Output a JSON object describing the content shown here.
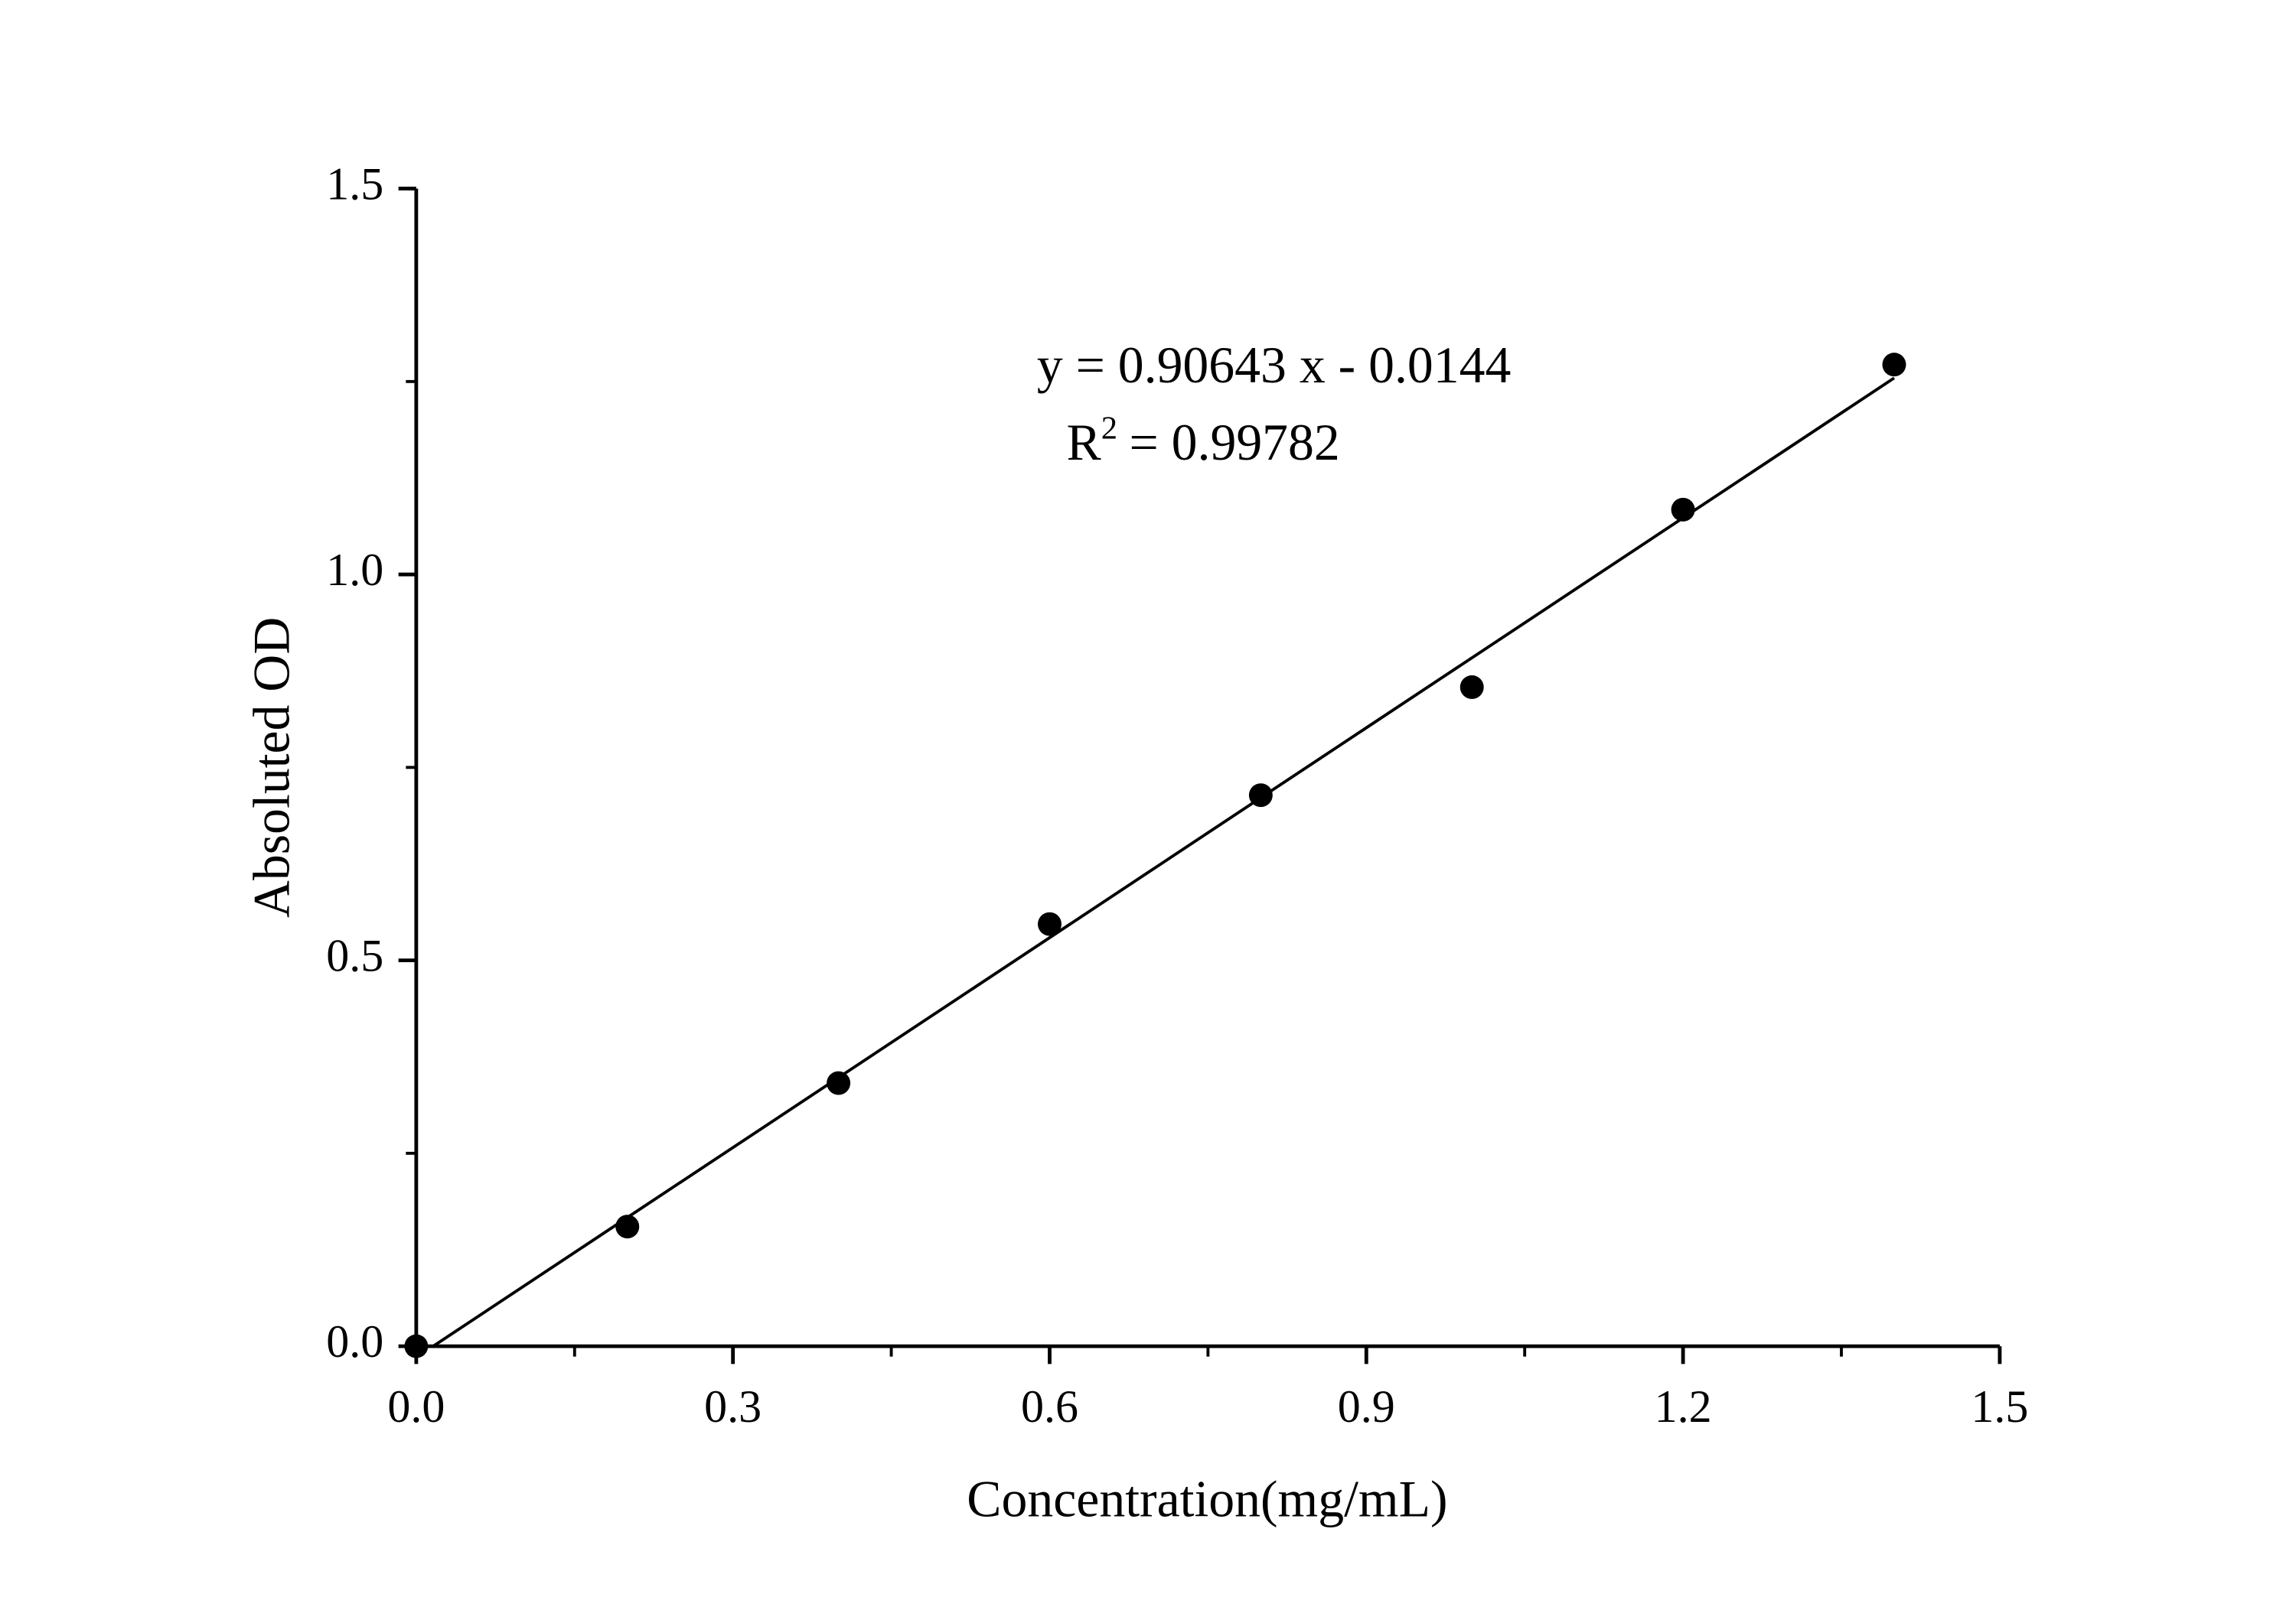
{
  "chart_data": {
    "type": "scatter",
    "x_label": "Concentration(mg/mL)",
    "y_label": "Absoluted OD",
    "x": [
      0,
      0.2,
      0.4,
      0.6,
      0.8,
      1.0,
      1.2,
      1.4
    ],
    "series": [
      {
        "values": [
          0,
          0.155,
          0.341,
          0.547,
          0.714,
          0.854,
          1.084,
          1.272
        ],
        "color": "#000000"
      }
    ],
    "fit_line": {
      "x": [
        0.016,
        1.4
      ],
      "y": [
        0,
        1.2546
      ],
      "color": "#000000"
    },
    "annotations": {
      "equation": "y = 0.90643 x - 0.0144",
      "r2": {
        "base": "R",
        "superscript": "2",
        "value": "= 0.99782"
      }
    },
    "xlim": [
      0,
      1.5
    ],
    "ylim": [
      0,
      1.5
    ],
    "xticks": [
      {
        "value": 0,
        "label": "0.0"
      },
      0.3,
      0.6,
      0.9,
      1.2,
      1.5
    ],
    "yticks": [
      {
        "value": 0,
        "label": "0.0"
      },
      0.5,
      {
        "value": 1,
        "label": "1.0"
      },
      1.5
    ],
    "xminorticks": [
      0.15,
      0.45,
      0.75,
      1.05,
      1.35
    ],
    "yminorticks": [
      0.25,
      0.75,
      1.25
    ],
    "grid": false
  }
}
